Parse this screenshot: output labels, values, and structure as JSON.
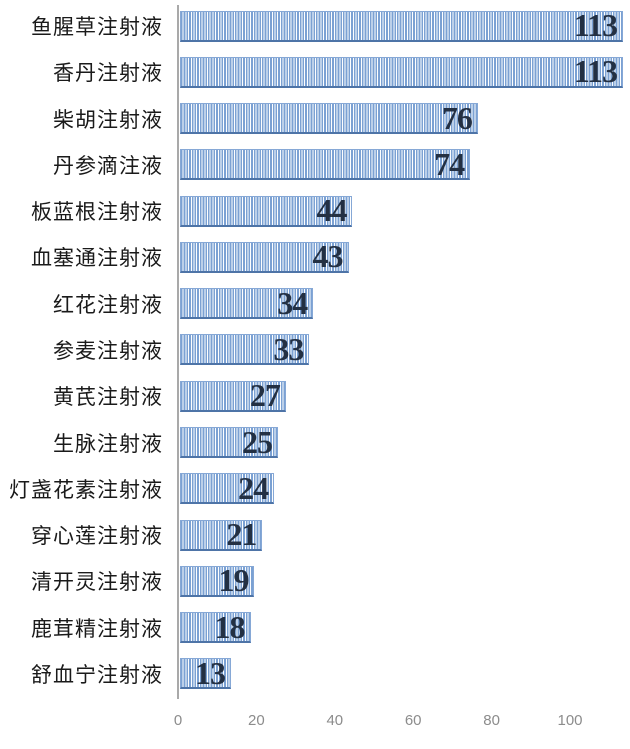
{
  "chart_data": {
    "type": "bar",
    "orientation": "horizontal",
    "title": "",
    "xlabel": "",
    "ylabel": "",
    "categories": [
      "鱼腥草注射液",
      "香丹注射液",
      "柴胡注射液",
      "丹参滴注液",
      "板蓝根注射液",
      "血塞通注射液",
      "红花注射液",
      "参麦注射液",
      "黄芪注射液",
      "生脉注射液",
      "灯盏花素注射液",
      "穿心莲注射液",
      "清开灵注射液",
      "鹿茸精注射液",
      "舒血宁注射液"
    ],
    "values": [
      113,
      113,
      76,
      74,
      44,
      43,
      34,
      33,
      27,
      25,
      24,
      21,
      19,
      18,
      13
    ],
    "value_labels_shown": true,
    "xlim": [
      0,
      115
    ],
    "xticks": [
      0,
      20,
      40,
      60,
      80,
      100
    ],
    "grid": false,
    "legend": false,
    "colors": {
      "bar_stripe_blue": "#7ba1d3",
      "bar_stripe_light": "#fdfeff",
      "bar_border": "#86a8d6",
      "bar_border_bottom": "#4e74a7",
      "value_label": "#233043",
      "category_label": "#1a1a1a",
      "axis_line": "#a9a9a9",
      "tick_label": "#8c8c8c"
    }
  }
}
